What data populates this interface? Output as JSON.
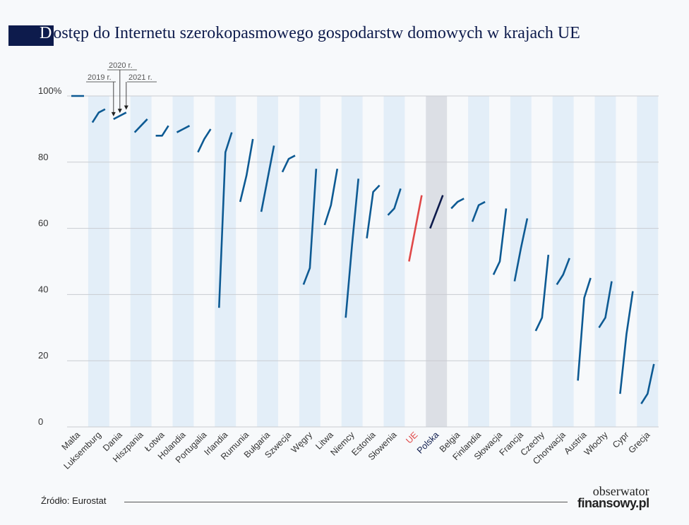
{
  "title": "Dostęp do Internetu szerokopasmowego gospodarstw domowych w krajach UE",
  "source": "Źródło: Eurostat",
  "logo": {
    "line1": "obserwator",
    "line2": "finansowy.pl"
  },
  "colors": {
    "series": "#0d5a93",
    "eu": "#e04848",
    "poland": "#0d1b4c",
    "band": "#e3eef8",
    "poland_band": "#dcdfe5"
  },
  "chart_data": {
    "type": "line",
    "title": "Dostęp do Internetu szerokopasmowego gospodarstw domowych w krajach UE",
    "years": [
      "2019 r.",
      "2020 r.",
      "2021 r."
    ],
    "ylim": [
      0,
      100
    ],
    "yticks": [
      0,
      20,
      40,
      60,
      80,
      100
    ],
    "ytick_labels": [
      "0",
      "20",
      "40",
      "60",
      "80",
      "100%"
    ],
    "grid": true,
    "categories": [
      "Malta",
      "Luksemburg",
      "Dania",
      "Hiszpania",
      "Łotwa",
      "Holandia",
      "Portugalia",
      "Irlandia",
      "Rumunia",
      "Bułgaria",
      "Szwecja",
      "Węgry",
      "Litwa",
      "Niemcy",
      "Estonia",
      "Słowenia",
      "UE",
      "Polska",
      "Belgia",
      "Finlandia",
      "Słowacja",
      "Francja",
      "Czechy",
      "Chorwacja",
      "Austria",
      "Włochy",
      "Cypr",
      "Grecja"
    ],
    "values": [
      [
        100,
        100,
        100
      ],
      [
        92,
        95,
        96
      ],
      [
        93,
        94,
        95
      ],
      [
        89,
        91,
        93
      ],
      [
        88,
        88,
        91
      ],
      [
        89,
        90,
        91
      ],
      [
        83,
        87,
        90
      ],
      [
        36,
        83,
        89
      ],
      [
        68,
        76,
        87
      ],
      [
        65,
        75,
        85
      ],
      [
        77,
        81,
        82
      ],
      [
        43,
        48,
        78
      ],
      [
        61,
        67,
        78
      ],
      [
        33,
        55,
        75
      ],
      [
        57,
        71,
        73
      ],
      [
        64,
        66,
        72
      ],
      [
        50,
        60,
        70
      ],
      [
        60,
        65,
        70
      ],
      [
        66,
        68,
        69
      ],
      [
        62,
        67,
        68
      ],
      [
        46,
        50,
        66
      ],
      [
        44,
        54,
        63
      ],
      [
        29,
        33,
        52
      ],
      [
        43,
        46,
        51
      ],
      [
        14,
        39,
        45
      ],
      [
        30,
        33,
        44
      ],
      [
        10,
        28,
        41
      ],
      [
        7,
        10,
        19
      ]
    ]
  }
}
